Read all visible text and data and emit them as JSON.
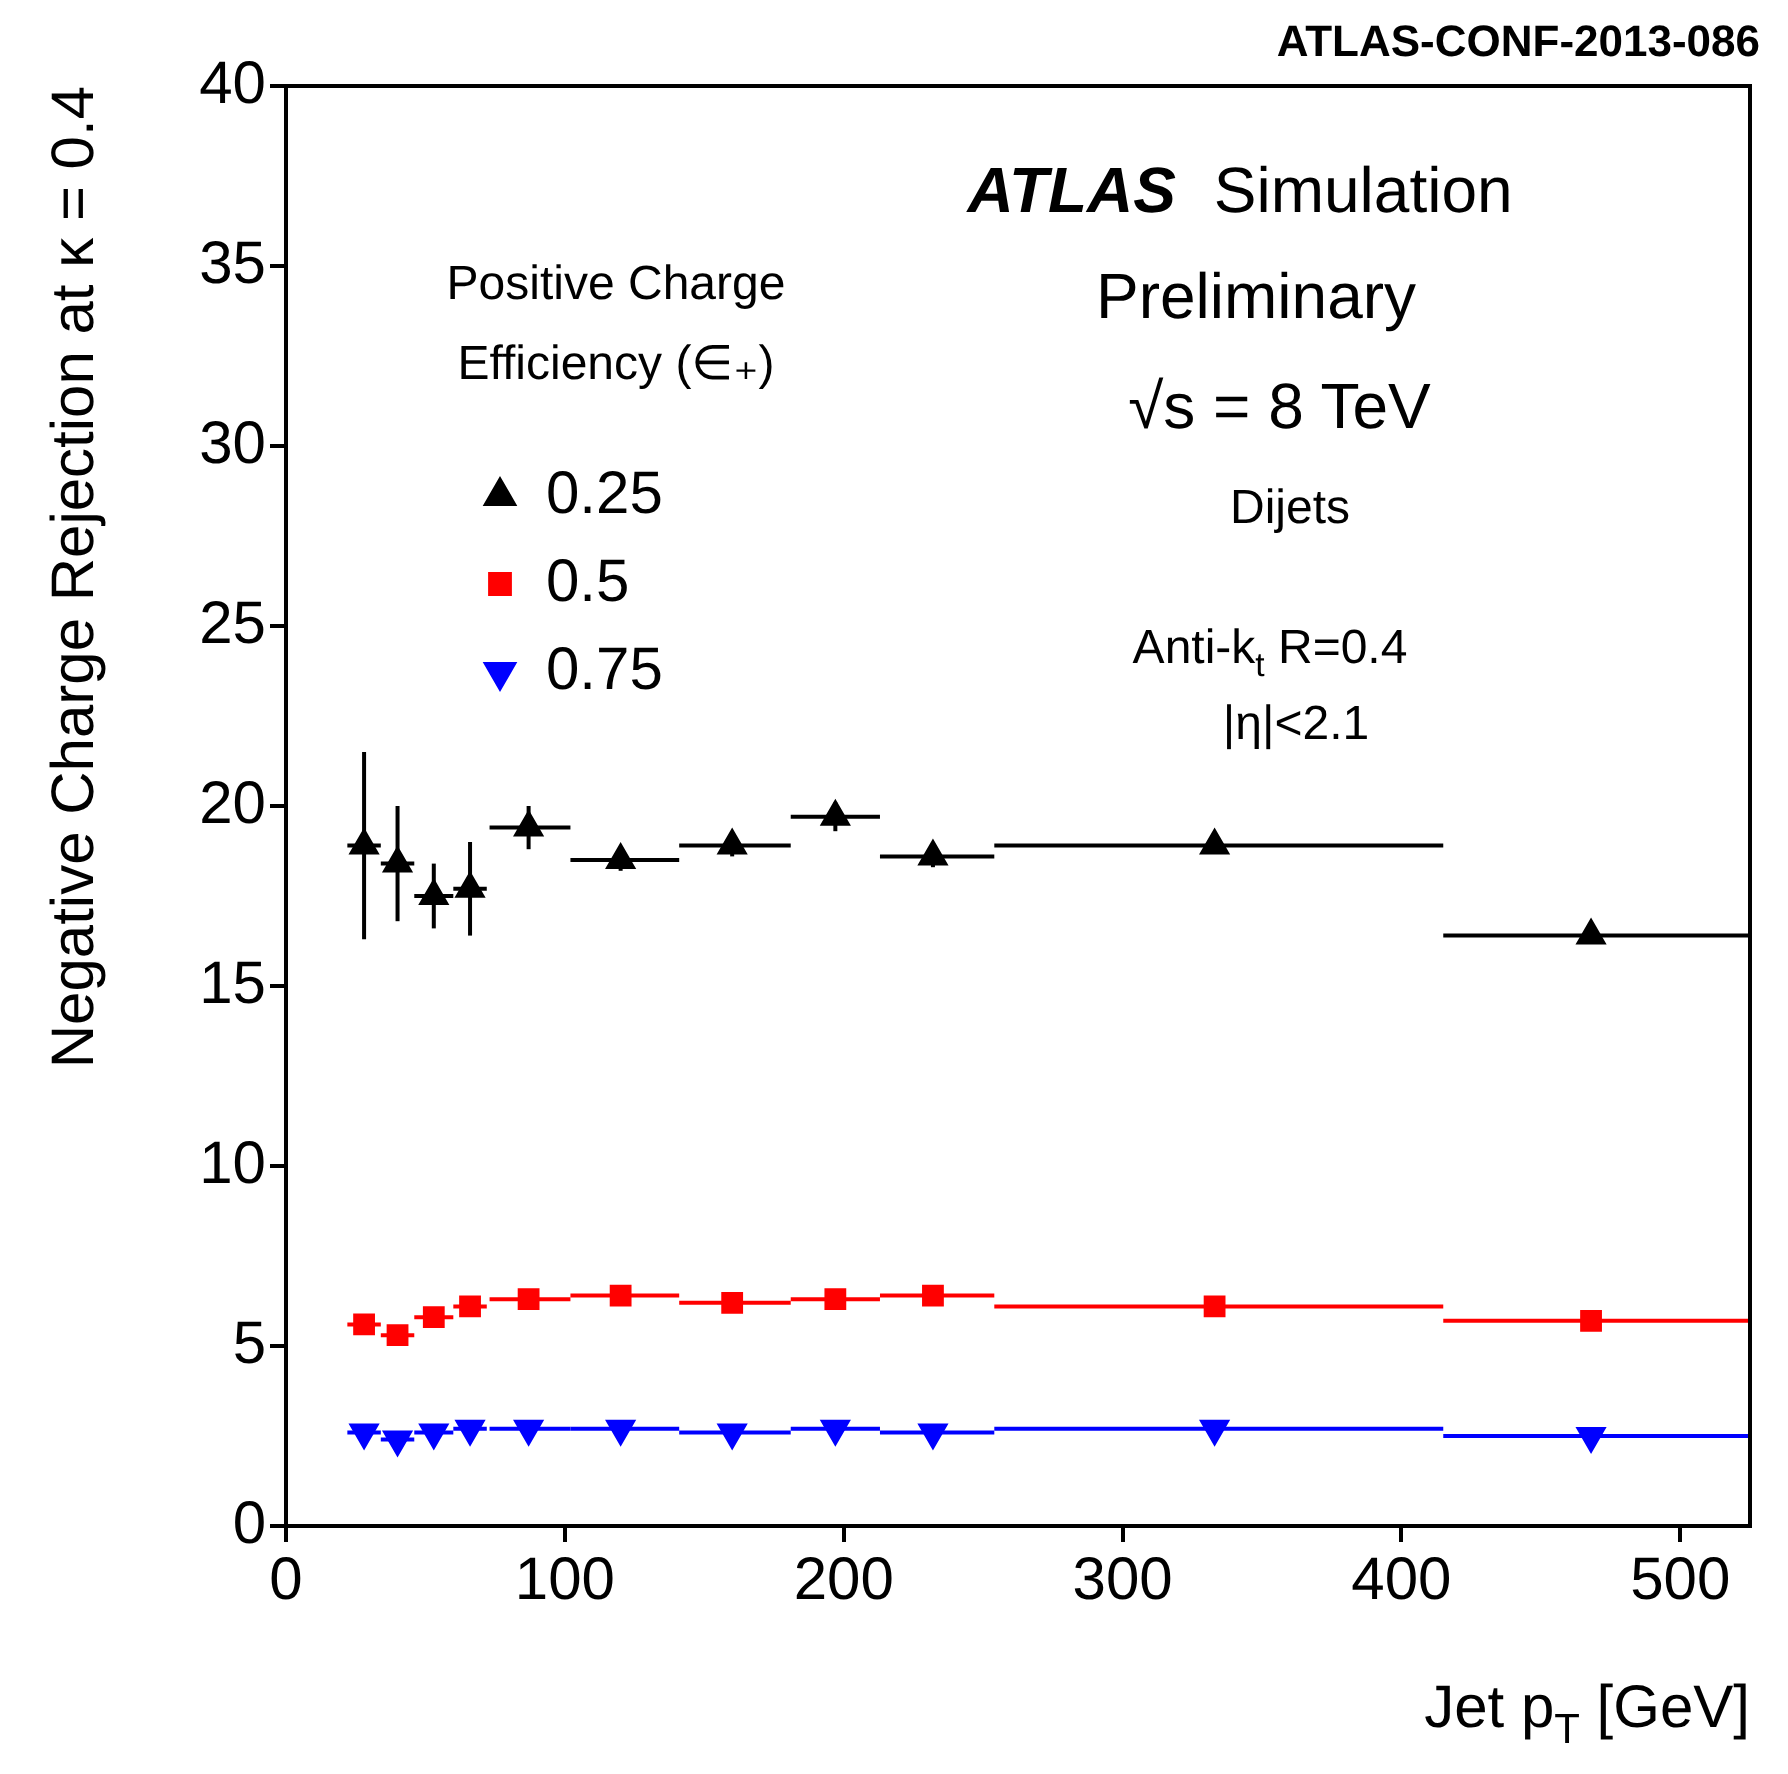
{
  "chart_data": {
    "type": "scatter",
    "xlabel": "Jet p$_{T}$ [GeV]",
    "ylabel": "Negative Charge Rejection at κ = 0.4",
    "legend_title": "Positive Charge Efficiency (∈₊)",
    "legend": "top left",
    "grid": false,
    "xlim": [
      0,
      525
    ],
    "xticks": [
      0,
      100,
      200,
      300,
      400,
      500
    ],
    "ylim": [
      0,
      40
    ],
    "yticks": [
      0,
      5,
      10,
      15,
      20,
      25,
      30,
      35,
      40
    ],
    "x": [
      28,
      40,
      53,
      66,
      87,
      120,
      160,
      197,
      232,
      333,
      468
    ],
    "series": [
      {
        "name": "0.25",
        "color": "#000000",
        "marker": "triangle",
        "values": [
          18.9,
          18.4,
          17.5,
          17.7,
          19.4,
          18.5,
          18.9,
          19.7,
          18.6,
          18.9,
          16.4
        ],
        "xerrors": [
          [
            22,
            34
          ],
          [
            34,
            46
          ],
          [
            46,
            60
          ],
          [
            60,
            72
          ],
          [
            73,
            102
          ],
          [
            102,
            141
          ],
          [
            141,
            181
          ],
          [
            181,
            213
          ],
          [
            213,
            254
          ],
          [
            254,
            415
          ],
          [
            415,
            525
          ]
        ],
        "errors": [
          2.6,
          1.6,
          0.9,
          1.3,
          0.6,
          0.3,
          0.3,
          0.4,
          0.3,
          0.2,
          0.2
        ]
      },
      {
        "name": "0.5",
        "color": "#ff0000",
        "marker": "square",
        "values": [
          5.6,
          5.3,
          5.8,
          6.1,
          6.3,
          6.4,
          6.2,
          6.3,
          6.4,
          6.1,
          5.7
        ],
        "xerrors": [
          [
            22,
            34
          ],
          [
            34,
            46
          ],
          [
            46,
            60
          ],
          [
            60,
            72
          ],
          [
            73,
            102
          ],
          [
            102,
            141
          ],
          [
            141,
            181
          ],
          [
            181,
            213
          ],
          [
            213,
            254
          ],
          [
            254,
            415
          ],
          [
            415,
            525
          ]
        ]
      },
      {
        "name": "0.75",
        "color": "#0000ff",
        "marker": "triangle-down",
        "values": [
          2.6,
          2.4,
          2.6,
          2.7,
          2.7,
          2.7,
          2.6,
          2.7,
          2.6,
          2.7,
          2.5
        ],
        "xerrors": [
          [
            22,
            34
          ],
          [
            34,
            46
          ],
          [
            46,
            60
          ],
          [
            60,
            72
          ],
          [
            73,
            102
          ],
          [
            102,
            141
          ],
          [
            141,
            181
          ],
          [
            181,
            213
          ],
          [
            213,
            254
          ],
          [
            254,
            415
          ],
          [
            415,
            525
          ]
        ]
      }
    ],
    "annotations": [
      "ATLAS-CONF-2013-086",
      "ATLAS Simulation",
      "Preliminary",
      "√s = 8 TeV",
      "Dijets",
      "Anti-k$_{t}$ R=0.4",
      "|η|<2.1"
    ]
  }
}
